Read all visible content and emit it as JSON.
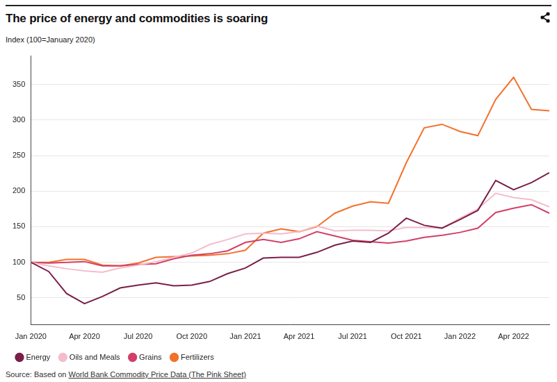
{
  "chart_data": {
    "type": "line",
    "title": "The price of energy and commodities is soaring",
    "subtitle": "Index (100=January 2020)",
    "source": "Source: Based on World Bank Commodity Price Data (The Pink Sheet)",
    "categories": [
      "Jan 2020",
      null,
      null,
      "Apr 2020",
      null,
      null,
      "Jul 2020",
      null,
      null,
      "Oct 2020",
      null,
      null,
      "Jan 2021",
      null,
      null,
      "Apr 2021",
      null,
      null,
      "Jul 2021",
      null,
      null,
      "Oct 2021",
      null,
      null,
      "Jan 2022",
      null,
      null,
      "Apr 2022",
      null,
      null
    ],
    "series": [
      {
        "name": "Energy",
        "color": "#7a1f48",
        "values": [
          100,
          87,
          56,
          42,
          52,
          64,
          68,
          71,
          67,
          68,
          73,
          84,
          92,
          106,
          107,
          107,
          114,
          124,
          130,
          128,
          141,
          162,
          152,
          148,
          160,
          173,
          215,
          202,
          212,
          226
        ]
      },
      {
        "name": "Oils and Meals",
        "color": "#f5bccb",
        "values": [
          100,
          95,
          91,
          88,
          86,
          92,
          96,
          101,
          107,
          113,
          125,
          132,
          140,
          141,
          140,
          143,
          151,
          144,
          145,
          145,
          144,
          149,
          149,
          148,
          162,
          175,
          197,
          191,
          188,
          178
        ]
      },
      {
        "name": "Grains",
        "color": "#d23f68",
        "values": [
          100,
          99,
          100,
          101,
          95,
          95,
          97,
          98,
          105,
          110,
          112,
          116,
          128,
          132,
          128,
          133,
          143,
          137,
          131,
          129,
          127,
          130,
          135,
          138,
          142,
          148,
          170,
          176,
          181,
          169
        ]
      },
      {
        "name": "Fertilizers",
        "color": "#f2712b",
        "values": [
          100,
          100,
          104,
          104,
          96,
          95,
          99,
          107,
          108,
          109,
          110,
          112,
          117,
          141,
          147,
          143,
          150,
          169,
          179,
          185,
          183,
          240,
          289,
          294,
          284,
          278,
          329,
          360,
          315,
          313
        ]
      }
    ],
    "ylim": [
      12,
      390
    ],
    "yticks": [
      50,
      100,
      150,
      200,
      250,
      300,
      350
    ],
    "grid": true,
    "legend": "bottom"
  }
}
